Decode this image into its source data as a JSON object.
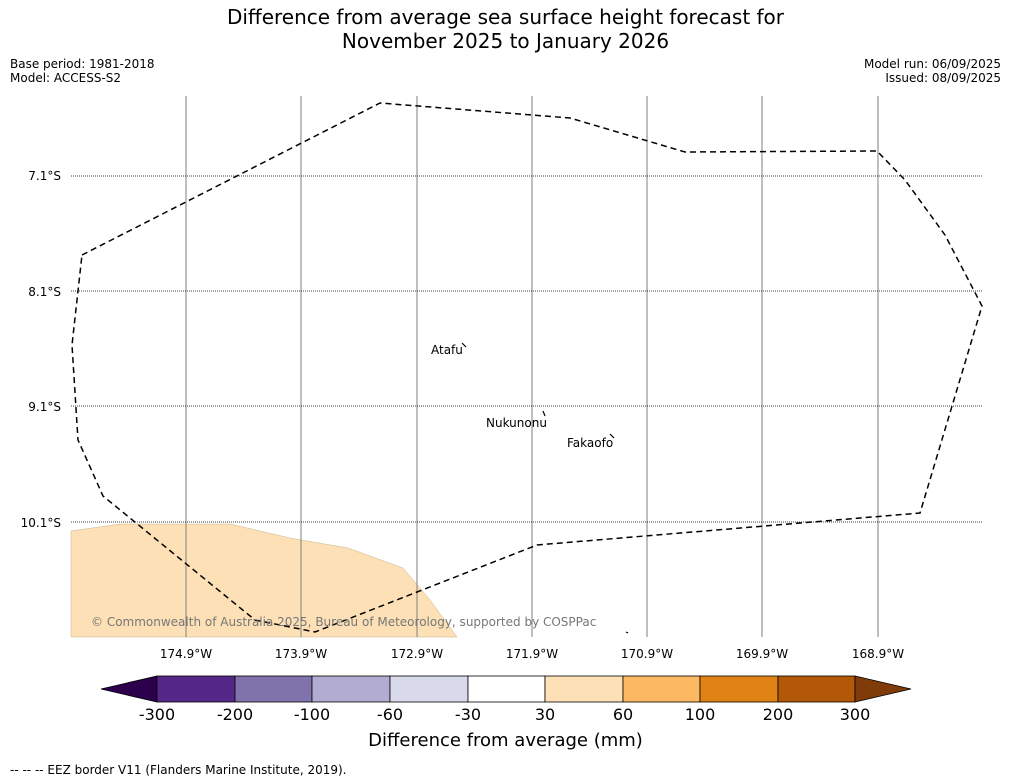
{
  "title": {
    "line1": "Difference from average sea surface height forecast for",
    "line2": "November 2025 to January 2026"
  },
  "meta_left": {
    "base_period": "Base period: 1981-2018",
    "model": "Model: ACCESS-S2"
  },
  "meta_right": {
    "model_run": "Model run: 06/09/2025",
    "issued": "Issued: 08/09/2025"
  },
  "map": {
    "lat_labels": [
      "7.1°S",
      "8.1°S",
      "9.1°S",
      "10.1°S"
    ],
    "lon_labels": [
      "174.9°W",
      "173.9°W",
      "172.9°W",
      "171.9°W",
      "170.9°W",
      "169.9°W",
      "168.9°W"
    ],
    "places": [
      {
        "name": "Atafu"
      },
      {
        "name": "Nukunonu"
      },
      {
        "name": "Fakaofo"
      }
    ],
    "copyright": "© Commonwealth of Australia 2025, Bureau of Meteorology, supported by COSPPac",
    "anomaly_fill_color": "#fde0b6",
    "eez_line_color": "#000000"
  },
  "colorbar": {
    "title": "Difference from average (mm)",
    "ticks": [
      "-300",
      "-200",
      "-100",
      "-60",
      "-30",
      "30",
      "60",
      "100",
      "200",
      "300"
    ],
    "colors": [
      "#2d004b",
      "#542788",
      "#8073ac",
      "#b2abd2",
      "#d8daeb",
      "#ffffff",
      "#fee0b6",
      "#fdb863",
      "#e08214",
      "#b35806",
      "#7f3b08"
    ]
  },
  "legend_note": "--  --  -- EEZ border V11 (Flanders Marine Institute, 2019)."
}
